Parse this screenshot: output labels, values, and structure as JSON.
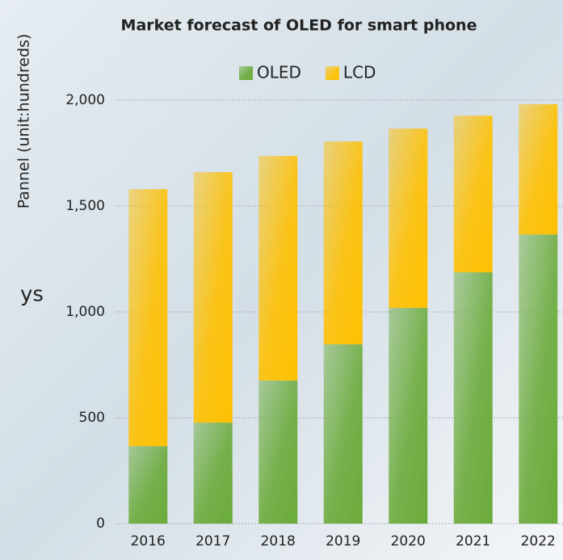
{
  "chart_data": {
    "type": "stacked_bar",
    "title": "Market forecast of OLED for smart phone",
    "y_label": "Pannel (unit:hundreds)",
    "background_text": "ys",
    "categories": [
      "2016",
      "2017",
      "2018",
      "2019",
      "2020",
      "2021",
      "2022"
    ],
    "series": [
      {
        "name": "OLED",
        "color": "#6aaa3a",
        "values": [
          366,
          477,
          676,
          847,
          1019,
          1187,
          1366
        ]
      },
      {
        "name": "LCD",
        "color": "#ffc000",
        "values": [
          1214,
          1183,
          1061,
          958,
          847,
          740,
          615
        ]
      }
    ],
    "ylim": [
      0,
      2000
    ],
    "yticks": [
      0,
      500,
      {
        "value": 1000,
        "label": "1,000"
      },
      {
        "value": 1500,
        "label": "1,500"
      },
      {
        "value": 2000,
        "label": "2,000"
      }
    ],
    "grid": true,
    "legend": "top"
  }
}
